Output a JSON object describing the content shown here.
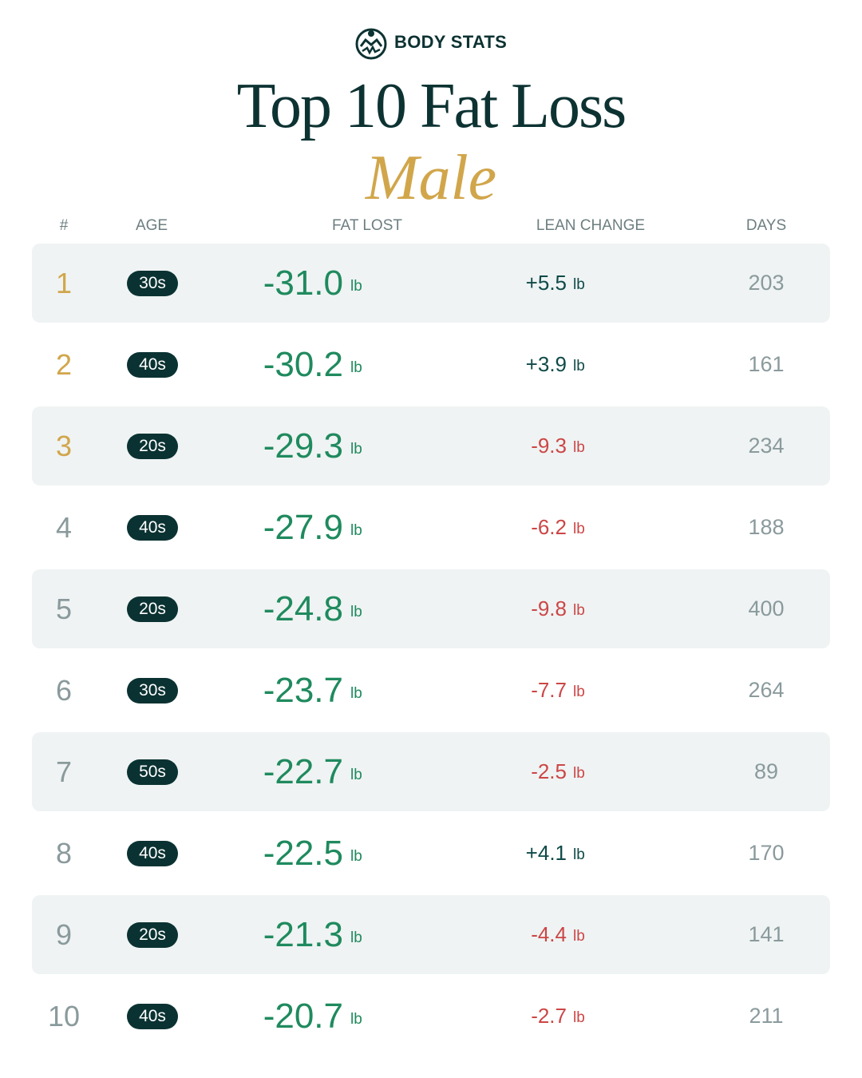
{
  "header": {
    "brand": "BODY STATS",
    "title": "Top 10 Fat Loss",
    "subtitle": "Male"
  },
  "table": {
    "columns": [
      "#",
      "AGE",
      "FAT LOST",
      "LEAN CHANGE",
      "DAYS"
    ],
    "rows": [
      {
        "rank": "1",
        "age": "30s",
        "fat_lost": "-31.0",
        "fat_unit": "lb",
        "lean_change": "+5.5",
        "lean_unit": "lb",
        "days": "203"
      },
      {
        "rank": "2",
        "age": "40s",
        "fat_lost": "-30.2",
        "fat_unit": "lb",
        "lean_change": "+3.9",
        "lean_unit": "lb",
        "days": "161"
      },
      {
        "rank": "3",
        "age": "20s",
        "fat_lost": "-29.3",
        "fat_unit": "lb",
        "lean_change": "-9.3",
        "lean_unit": "lb",
        "days": "234"
      },
      {
        "rank": "4",
        "age": "40s",
        "fat_lost": "-27.9",
        "fat_unit": "lb",
        "lean_change": "-6.2",
        "lean_unit": "lb",
        "days": "188"
      },
      {
        "rank": "5",
        "age": "20s",
        "fat_lost": "-24.8",
        "fat_unit": "lb",
        "lean_change": "-9.8",
        "lean_unit": "lb",
        "days": "400"
      },
      {
        "rank": "6",
        "age": "30s",
        "fat_lost": "-23.7",
        "fat_unit": "lb",
        "lean_change": "-7.7",
        "lean_unit": "lb",
        "days": "264"
      },
      {
        "rank": "7",
        "age": "50s",
        "fat_lost": "-22.7",
        "fat_unit": "lb",
        "lean_change": "-2.5",
        "lean_unit": "lb",
        "days": "89"
      },
      {
        "rank": "8",
        "age": "40s",
        "fat_lost": "-22.5",
        "fat_unit": "lb",
        "lean_change": "+4.1",
        "lean_unit": "lb",
        "days": "170"
      },
      {
        "rank": "9",
        "age": "20s",
        "fat_lost": "-21.3",
        "fat_unit": "lb",
        "lean_change": "-4.4",
        "lean_unit": "lb",
        "days": "141"
      },
      {
        "rank": "10",
        "age": "40s",
        "fat_lost": "-20.7",
        "fat_unit": "lb",
        "lean_change": "-2.7",
        "lean_unit": "lb",
        "days": "211"
      }
    ]
  }
}
